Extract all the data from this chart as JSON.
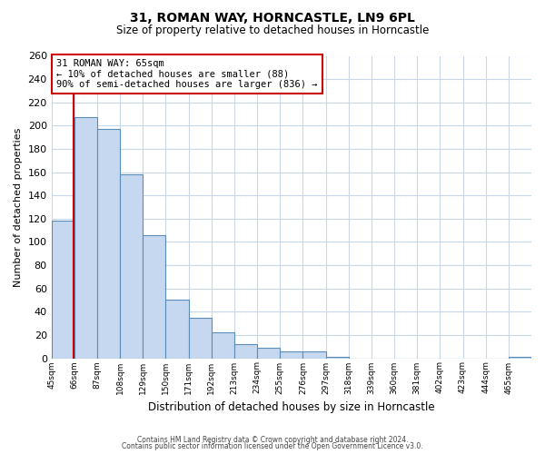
{
  "title": "31, ROMAN WAY, HORNCASTLE, LN9 6PL",
  "subtitle": "Size of property relative to detached houses in Horncastle",
  "xlabel": "Distribution of detached houses by size in Horncastle",
  "ylabel": "Number of detached properties",
  "bin_labels": [
    "45sqm",
    "66sqm",
    "87sqm",
    "108sqm",
    "129sqm",
    "150sqm",
    "171sqm",
    "192sqm",
    "213sqm",
    "234sqm",
    "255sqm",
    "276sqm",
    "297sqm",
    "318sqm",
    "339sqm",
    "360sqm",
    "381sqm",
    "402sqm",
    "423sqm",
    "444sqm",
    "465sqm"
  ],
  "bin_edges": [
    45,
    66,
    87,
    108,
    129,
    150,
    171,
    192,
    213,
    234,
    255,
    276,
    297,
    318,
    339,
    360,
    381,
    402,
    423,
    444,
    465
  ],
  "bar_heights": [
    118,
    207,
    197,
    158,
    106,
    50,
    35,
    22,
    12,
    9,
    6,
    6,
    1,
    0,
    0,
    0,
    0,
    0,
    0,
    0,
    1
  ],
  "bar_color": "#c5d8f0",
  "bar_edge_color": "#5b8db8",
  "property_size": 65,
  "property_line_color": "#cc0000",
  "annotation_title": "31 ROMAN WAY: 65sqm",
  "annotation_line1": "← 10% of detached houses are smaller (88)",
  "annotation_line2": "90% of semi-detached houses are larger (836) →",
  "annotation_box_color": "#cc0000",
  "ylim": [
    0,
    260
  ],
  "yticks": [
    0,
    20,
    40,
    60,
    80,
    100,
    120,
    140,
    160,
    180,
    200,
    220,
    240,
    260
  ],
  "footer1": "Contains HM Land Registry data © Crown copyright and database right 2024.",
  "footer2": "Contains public sector information licensed under the Open Government Licence v3.0.",
  "background_color": "#ffffff",
  "grid_color": "#c8d8e8"
}
